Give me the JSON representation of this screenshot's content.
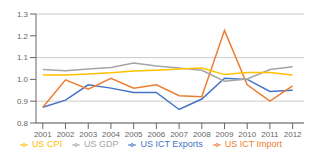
{
  "chart_data": {
    "type": "line",
    "x": [
      2001,
      2002,
      2003,
      2004,
      2005,
      2006,
      2007,
      2008,
      2009,
      2010,
      2011,
      2012
    ],
    "series": [
      {
        "name": "US ICT Exports",
        "color": "#4472C4",
        "values": [
          0.872,
          0.905,
          0.975,
          0.96,
          0.94,
          0.94,
          0.862,
          0.91,
          1.005,
          1.0,
          0.945,
          0.95
        ]
      },
      {
        "name": "US ICT Import",
        "color": "#ED7D31",
        "values": [
          0.872,
          0.998,
          0.955,
          1.005,
          0.96,
          0.975,
          0.925,
          0.92,
          1.225,
          0.975,
          0.9,
          0.97
        ]
      },
      {
        "name": "US GDP",
        "color": "#A5A5A5",
        "values": [
          1.045,
          1.04,
          1.048,
          1.055,
          1.075,
          1.062,
          1.052,
          1.042,
          0.992,
          1.002,
          1.045,
          1.058
        ]
      },
      {
        "name": "US CPI",
        "color": "#FFC000",
        "values": [
          1.02,
          1.02,
          1.025,
          1.03,
          1.038,
          1.042,
          1.048,
          1.052,
          1.022,
          1.032,
          1.032,
          1.02
        ]
      }
    ],
    "xlim": [
      2000.7,
      2012.5
    ],
    "xticks": [
      2001,
      2002,
      2003,
      2004,
      2005,
      2006,
      2007,
      2008,
      2009,
      2010,
      2011,
      2012
    ],
    "ylim": [
      0.8,
      1.3
    ],
    "yticks": [
      0.8,
      0.9,
      {
        "value": 1.0,
        "label": "1.0"
      },
      1.1,
      1.2,
      1.3
    ],
    "grid": true,
    "legend": "bottom"
  }
}
